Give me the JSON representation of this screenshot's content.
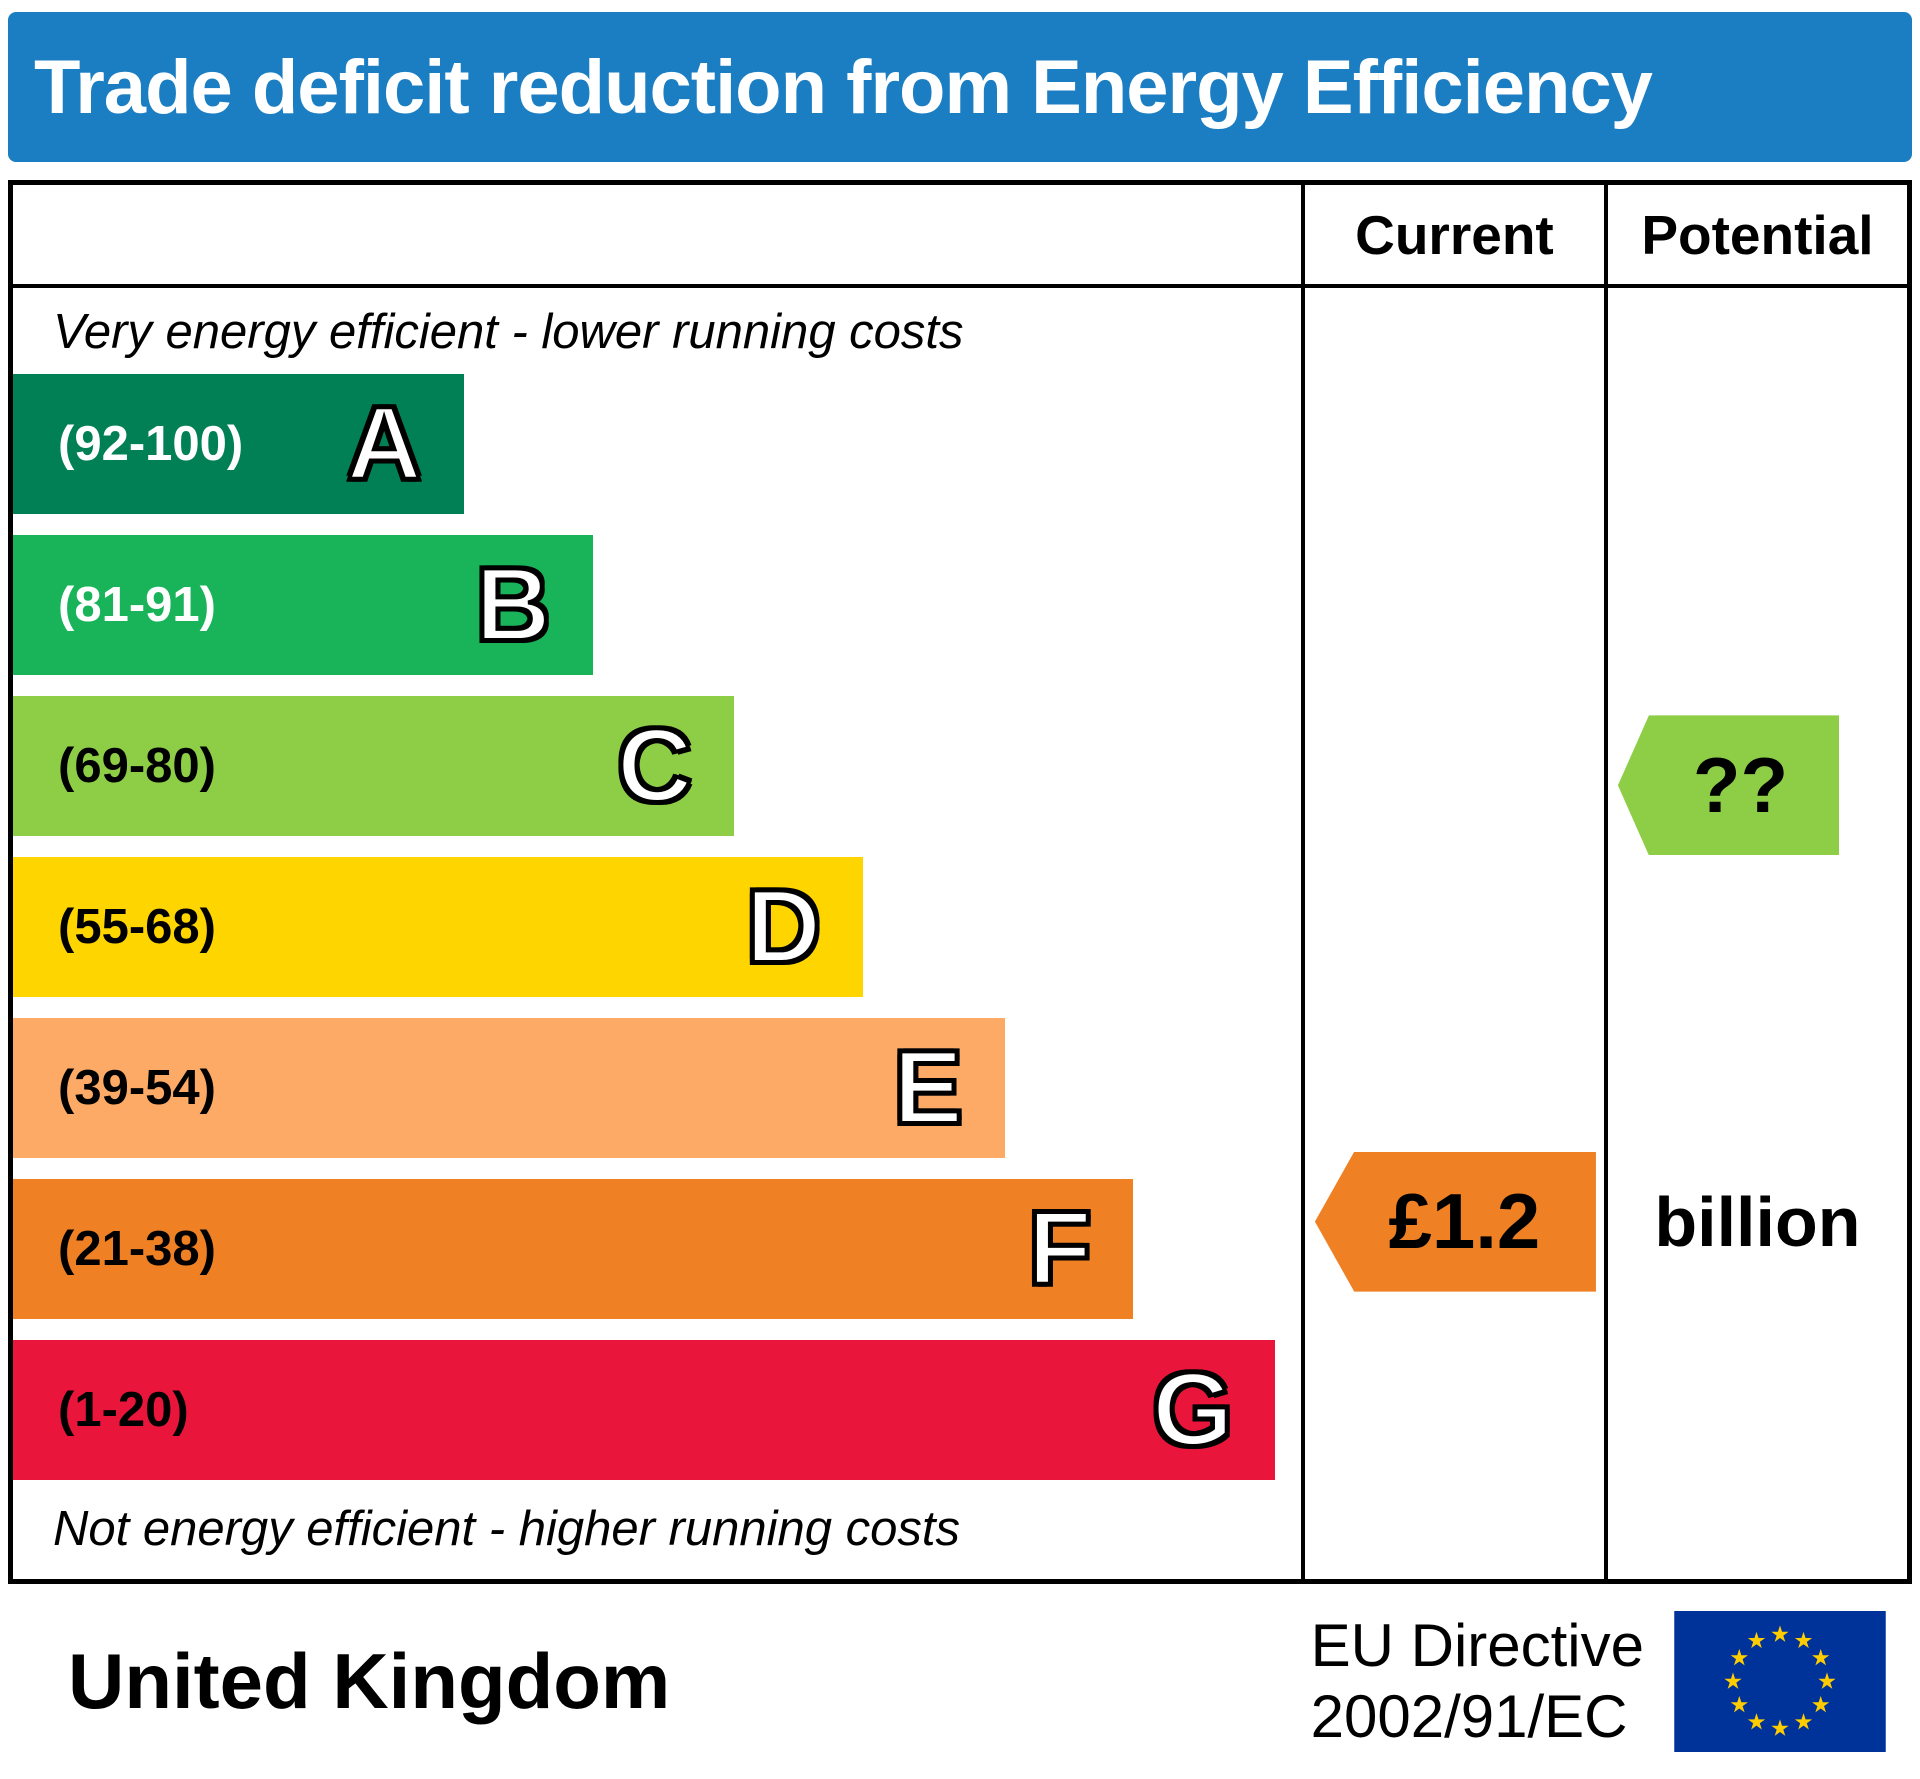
{
  "title": "Trade deficit reduction from Energy Efficiency",
  "columns": {
    "current": "Current",
    "potential": "Potential"
  },
  "notes": {
    "top": "Very energy efficient - lower running costs",
    "bottom": "Not energy efficient - higher running costs"
  },
  "bands": [
    {
      "letter": "A",
      "range": "(92-100)",
      "color": "#008054",
      "text_color": "#ffffff",
      "width_pct": 35
    },
    {
      "letter": "B",
      "range": "(81-91)",
      "color": "#19b459",
      "text_color": "#ffffff",
      "width_pct": 45
    },
    {
      "letter": "C",
      "range": "(69-80)",
      "color": "#8dce46",
      "text_color": "#000000",
      "width_pct": 56
    },
    {
      "letter": "D",
      "range": "(55-68)",
      "color": "#ffd500",
      "text_color": "#000000",
      "width_pct": 66
    },
    {
      "letter": "E",
      "range": "(39-54)",
      "color": "#fcaa65",
      "text_color": "#000000",
      "width_pct": 77
    },
    {
      "letter": "F",
      "range": "(21-38)",
      "color": "#ef8023",
      "text_color": "#000000",
      "width_pct": 87
    },
    {
      "letter": "G",
      "range": "(1-20)",
      "color": "#e9153b",
      "text_color": "#000000",
      "width_pct": 98
    }
  ],
  "current_marker": {
    "value": "£1.2",
    "color": "#ef8023",
    "band": "F"
  },
  "potential_marker": {
    "value": "??",
    "color": "#8dce46",
    "band": "C"
  },
  "potential_note": "billion",
  "footer": {
    "country": "United Kingdom",
    "directive_line1": "EU Directive",
    "directive_line2": "2002/91/EC",
    "eu_flag": {
      "background": "#003399",
      "stars": "#ffcc00"
    }
  },
  "colors": {
    "header": "#1b7ec3",
    "border": "#000000"
  },
  "chart_data": {
    "type": "bar",
    "title": "Trade deficit reduction from Energy Efficiency",
    "categories": [
      "A",
      "B",
      "C",
      "D",
      "E",
      "F",
      "G"
    ],
    "band_ranges": [
      "92-100",
      "81-91",
      "69-80",
      "55-68",
      "39-54",
      "21-38",
      "1-20"
    ],
    "band_colors": [
      "#008054",
      "#19b459",
      "#8dce46",
      "#ffd500",
      "#fcaa65",
      "#ef8023",
      "#e9153b"
    ],
    "bar_widths_pct": [
      35,
      45,
      56,
      66,
      77,
      87,
      98
    ],
    "current": {
      "value": "£1.2 billion",
      "band": "F"
    },
    "potential": {
      "value": "??",
      "band": "C"
    },
    "legend_position": "right-columns",
    "annotations": [
      "Very energy efficient - lower running costs",
      "Not energy efficient - higher running costs",
      "United Kingdom",
      "EU Directive 2002/91/EC"
    ]
  }
}
